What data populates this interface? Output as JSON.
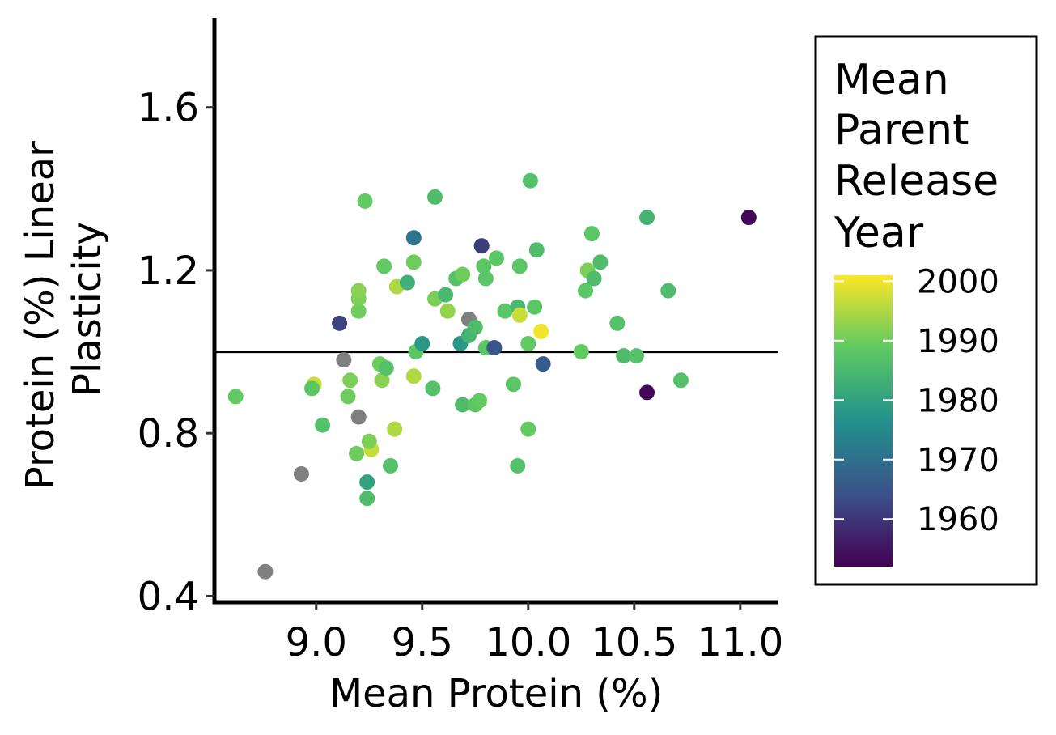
{
  "chart_data": {
    "type": "scatter",
    "xlabel": "Mean Protein (%)",
    "ylabel_lines": [
      "Protein (%) Linear",
      "Plasticity"
    ],
    "xlim": [
      8.52,
      11.18
    ],
    "ylim": [
      0.385,
      1.82
    ],
    "x_ticks": [
      9.0,
      9.5,
      10.0,
      10.5,
      11.0
    ],
    "x_tick_labels": [
      "9.0",
      "9.5",
      "10.0",
      "10.5",
      "11.0"
    ],
    "y_ticks": [
      0.4,
      0.8,
      1.2,
      1.6
    ],
    "y_tick_labels": [
      "0.4",
      "0.8",
      "1.2",
      "1.6"
    ],
    "reference_line_y": 1.0,
    "grid": false,
    "legend": {
      "title_lines": [
        "Mean",
        "Parent",
        "Release",
        "Year"
      ],
      "placement": "right",
      "range": [
        1952,
        2001
      ],
      "ticks": [
        1960,
        1970,
        1980,
        1990,
        2000
      ],
      "tick_labels": [
        "1960",
        "1970",
        "1980",
        "1990",
        "2000"
      ],
      "na_color": "#808080"
    },
    "points": [
      {
        "x": 8.62,
        "y": 0.89,
        "year": 1989
      },
      {
        "x": 8.76,
        "y": 0.46,
        "year": null
      },
      {
        "x": 8.93,
        "y": 0.7,
        "year": null
      },
      {
        "x": 8.99,
        "y": 0.92,
        "year": 1997
      },
      {
        "x": 8.98,
        "y": 0.91,
        "year": 1988
      },
      {
        "x": 9.03,
        "y": 0.82,
        "year": 1987
      },
      {
        "x": 9.11,
        "y": 1.07,
        "year": 1962
      },
      {
        "x": 9.13,
        "y": 0.98,
        "year": null
      },
      {
        "x": 9.15,
        "y": 0.89,
        "year": 1990
      },
      {
        "x": 9.16,
        "y": 0.93,
        "year": 1991
      },
      {
        "x": 9.19,
        "y": 0.75,
        "year": 1990
      },
      {
        "x": 9.2,
        "y": 0.84,
        "year": null
      },
      {
        "x": 9.2,
        "y": 1.1,
        "year": 1990
      },
      {
        "x": 9.2,
        "y": 1.13,
        "year": 1991
      },
      {
        "x": 9.2,
        "y": 1.15,
        "year": 1992
      },
      {
        "x": 9.23,
        "y": 1.37,
        "year": 1989
      },
      {
        "x": 9.24,
        "y": 0.68,
        "year": 1980
      },
      {
        "x": 9.24,
        "y": 0.64,
        "year": 1986
      },
      {
        "x": 9.26,
        "y": 0.76,
        "year": 1997
      },
      {
        "x": 9.25,
        "y": 0.78,
        "year": 1991
      },
      {
        "x": 9.3,
        "y": 0.97,
        "year": 1990
      },
      {
        "x": 9.31,
        "y": 0.93,
        "year": 1992
      },
      {
        "x": 9.33,
        "y": 0.96,
        "year": 1987
      },
      {
        "x": 9.32,
        "y": 1.21,
        "year": 1989
      },
      {
        "x": 9.35,
        "y": 0.72,
        "year": 1987
      },
      {
        "x": 9.37,
        "y": 0.81,
        "year": 1995
      },
      {
        "x": 9.38,
        "y": 1.16,
        "year": 1995
      },
      {
        "x": 9.43,
        "y": 1.17,
        "year": 1983
      },
      {
        "x": 9.46,
        "y": 0.94,
        "year": 1995
      },
      {
        "x": 9.46,
        "y": 1.22,
        "year": 1990
      },
      {
        "x": 9.47,
        "y": 1.0,
        "year": 1988
      },
      {
        "x": 9.46,
        "y": 1.28,
        "year": 1971
      },
      {
        "x": 9.5,
        "y": 1.02,
        "year": 1978
      },
      {
        "x": 9.55,
        "y": 0.91,
        "year": 1987
      },
      {
        "x": 9.56,
        "y": 1.13,
        "year": 1991
      },
      {
        "x": 9.56,
        "y": 1.38,
        "year": 1986
      },
      {
        "x": 9.61,
        "y": 1.14,
        "year": 1985
      },
      {
        "x": 9.62,
        "y": 1.1,
        "year": 1993
      },
      {
        "x": 9.66,
        "y": 1.18,
        "year": 1987
      },
      {
        "x": 9.68,
        "y": 1.02,
        "year": 1978
      },
      {
        "x": 9.69,
        "y": 1.19,
        "year": 1990
      },
      {
        "x": 9.69,
        "y": 0.87,
        "year": 1986
      },
      {
        "x": 9.72,
        "y": 1.04,
        "year": 1984
      },
      {
        "x": 9.72,
        "y": 1.08,
        "year": null
      },
      {
        "x": 9.75,
        "y": 1.06,
        "year": 1986
      },
      {
        "x": 9.75,
        "y": 0.87,
        "year": 1988
      },
      {
        "x": 9.77,
        "y": 0.88,
        "year": 1989
      },
      {
        "x": 9.78,
        "y": 1.26,
        "year": 1961
      },
      {
        "x": 9.79,
        "y": 1.21,
        "year": 1988
      },
      {
        "x": 9.8,
        "y": 1.18,
        "year": 1988
      },
      {
        "x": 9.8,
        "y": 1.01,
        "year": 1988
      },
      {
        "x": 9.84,
        "y": 1.01,
        "year": 1965
      },
      {
        "x": 9.85,
        "y": 1.23,
        "year": 1988
      },
      {
        "x": 9.89,
        "y": 1.1,
        "year": 1988
      },
      {
        "x": 9.93,
        "y": 0.92,
        "year": 1988
      },
      {
        "x": 9.95,
        "y": 1.11,
        "year": 1985
      },
      {
        "x": 9.95,
        "y": 0.72,
        "year": 1987
      },
      {
        "x": 9.96,
        "y": 1.21,
        "year": 1988
      },
      {
        "x": 9.96,
        "y": 1.09,
        "year": 1997
      },
      {
        "x": 10.0,
        "y": 1.02,
        "year": 1989
      },
      {
        "x": 10.01,
        "y": 1.42,
        "year": 1987
      },
      {
        "x": 10.0,
        "y": 0.81,
        "year": 1989
      },
      {
        "x": 10.03,
        "y": 1.11,
        "year": 1988
      },
      {
        "x": 10.04,
        "y": 1.25,
        "year": 1986
      },
      {
        "x": 10.06,
        "y": 1.05,
        "year": 2000
      },
      {
        "x": 10.07,
        "y": 0.97,
        "year": 1966
      },
      {
        "x": 10.25,
        "y": 1.0,
        "year": 1989
      },
      {
        "x": 10.27,
        "y": 1.15,
        "year": 1988
      },
      {
        "x": 10.28,
        "y": 1.2,
        "year": 1991
      },
      {
        "x": 10.3,
        "y": 1.29,
        "year": 1988
      },
      {
        "x": 10.31,
        "y": 1.18,
        "year": 1986
      },
      {
        "x": 10.34,
        "y": 1.22,
        "year": 1986
      },
      {
        "x": 10.42,
        "y": 1.07,
        "year": 1987
      },
      {
        "x": 10.45,
        "y": 0.99,
        "year": 1986
      },
      {
        "x": 10.51,
        "y": 0.99,
        "year": 1987
      },
      {
        "x": 10.56,
        "y": 1.33,
        "year": 1984
      },
      {
        "x": 10.56,
        "y": 0.9,
        "year": 1953
      },
      {
        "x": 10.66,
        "y": 1.15,
        "year": 1986
      },
      {
        "x": 10.72,
        "y": 0.93,
        "year": 1987
      },
      {
        "x": 11.04,
        "y": 1.33,
        "year": 1953
      }
    ]
  }
}
